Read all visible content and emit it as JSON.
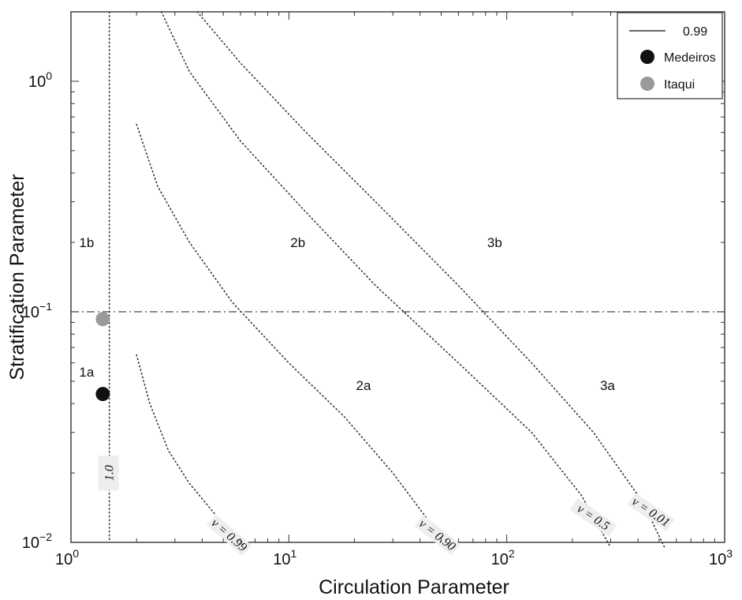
{
  "chart_data": {
    "type": "line",
    "title": "",
    "xlabel": "Circulation Parameter",
    "ylabel": "Stratification Parameter",
    "xscale": "log",
    "yscale": "log",
    "xlim": [
      1,
      1000
    ],
    "ylim": [
      0.01,
      2
    ],
    "x_ticks": [
      {
        "value": 1,
        "base": "10",
        "exp": "0"
      },
      {
        "value": 10,
        "base": "10",
        "exp": "1"
      },
      {
        "value": 100,
        "base": "10",
        "exp": "2"
      },
      {
        "value": 1000,
        "base": "10",
        "exp": "3"
      }
    ],
    "y_ticks": [
      {
        "value": 0.01,
        "base": "10",
        "exp": "−2"
      },
      {
        "value": 0.1,
        "base": "10",
        "exp": "−1"
      },
      {
        "value": 1,
        "base": "10",
        "exp": "0"
      }
    ],
    "grid": false,
    "reference_line": {
      "y": 0.1,
      "style": "dash-dot"
    },
    "series": [
      {
        "label": "1.0",
        "vertical_x": 1.5,
        "y_range": [
          0.01,
          2
        ]
      },
      {
        "label": "ν = 0.99",
        "points": [
          [
            2.0,
            0.065
          ],
          [
            2.3,
            0.04
          ],
          [
            2.8,
            0.025
          ],
          [
            3.5,
            0.018
          ],
          [
            5.0,
            0.012
          ],
          [
            6.5,
            0.0095
          ]
        ]
      },
      {
        "label": "ν = 0.90",
        "points": [
          [
            2.0,
            0.65
          ],
          [
            2.5,
            0.35
          ],
          [
            3.5,
            0.2
          ],
          [
            5.5,
            0.11
          ],
          [
            10,
            0.06
          ],
          [
            18,
            0.035
          ],
          [
            30,
            0.02
          ],
          [
            45,
            0.012
          ],
          [
            55,
            0.009
          ]
        ]
      },
      {
        "label": "ν = 0.5",
        "points": [
          [
            2.6,
            2.0
          ],
          [
            3.5,
            1.1
          ],
          [
            6,
            0.55
          ],
          [
            12,
            0.27
          ],
          [
            25,
            0.13
          ],
          [
            60,
            0.06
          ],
          [
            130,
            0.03
          ],
          [
            220,
            0.016
          ],
          [
            300,
            0.0095
          ]
        ]
      },
      {
        "label": "ν = 0.01",
        "points": [
          [
            3.8,
            2.0
          ],
          [
            6,
            1.2
          ],
          [
            12,
            0.6
          ],
          [
            25,
            0.3
          ],
          [
            60,
            0.13
          ],
          [
            130,
            0.06
          ],
          [
            250,
            0.03
          ],
          [
            420,
            0.015
          ],
          [
            530,
            0.0095
          ]
        ]
      }
    ],
    "points": [
      {
        "name": "Medeiros",
        "x": 1.4,
        "y": 0.044,
        "color": "#111111"
      },
      {
        "name": "Itaqui",
        "x": 1.4,
        "y": 0.093,
        "color": "#9a9a9a"
      }
    ],
    "region_labels": [
      {
        "text": "1b",
        "x": 1.18,
        "y": 0.2
      },
      {
        "text": "2b",
        "x": 11,
        "y": 0.2
      },
      {
        "text": "3b",
        "x": 88,
        "y": 0.2
      },
      {
        "text": "1a",
        "x": 1.18,
        "y": 0.055
      },
      {
        "text": "2a",
        "x": 22,
        "y": 0.048
      },
      {
        "text": "3a",
        "x": 290,
        "y": 0.048
      }
    ],
    "legend": {
      "position": "top-right",
      "entries": [
        {
          "label": "0.99",
          "marker": "line",
          "color": "#333333"
        },
        {
          "label": "Medeiros",
          "marker": "circle",
          "color": "#111111"
        },
        {
          "label": "Itaqui",
          "marker": "circle",
          "color": "#9a9a9a"
        }
      ]
    }
  }
}
